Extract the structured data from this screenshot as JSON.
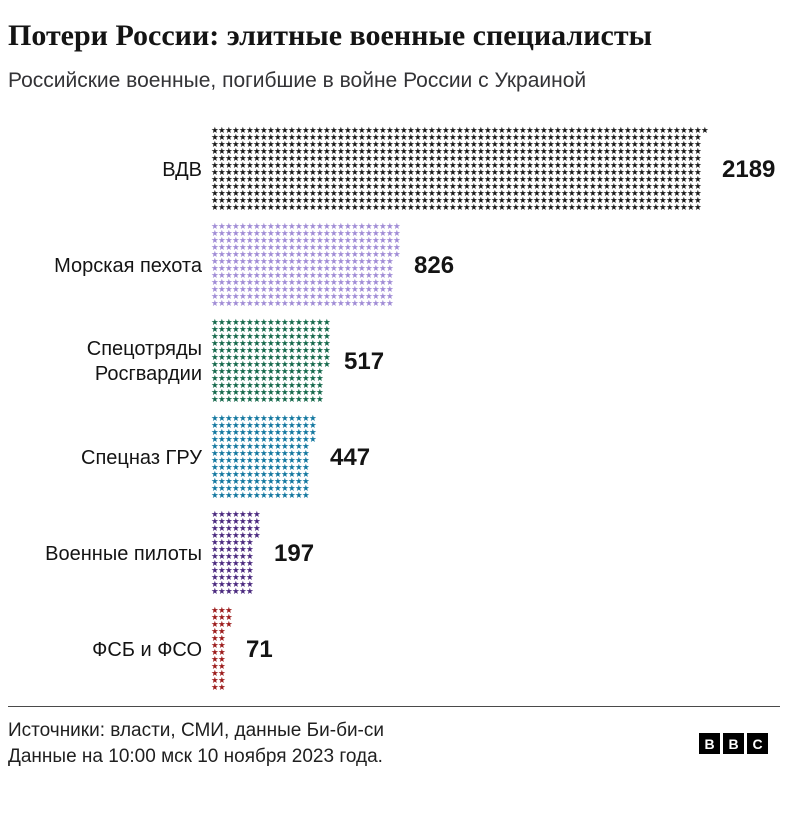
{
  "header": {
    "title": "Потери России: элитные военные специалисты",
    "subtitle": "Российские военные, погибшие в войне России с Украиной"
  },
  "chart_data": {
    "type": "bar",
    "variant": "pictogram",
    "unit_glyph": "★",
    "orientation": "horizontal",
    "categories": [
      "ВДВ",
      "Морская пехота",
      "Спецотряды Росгвардии",
      "Спецназ ГРУ",
      "Военные пилоты",
      "ФСБ и ФСО"
    ],
    "values": [
      2189,
      826,
      517,
      447,
      197,
      71
    ],
    "colors": [
      "#1a1a1a",
      "#a18dd6",
      "#16694c",
      "#1478a0",
      "#4b2a7f",
      "#9c1b1b"
    ],
    "value_labels": [
      "2189",
      "826",
      "517",
      "447",
      "197",
      "71"
    ],
    "title": "Потери России: элитные военные специалисты",
    "subtitle": "Российские военные, погибшие в войне России с Украиной",
    "xlabel": "",
    "ylabel": ""
  },
  "footer": {
    "source": "Источники: власти, СМИ, данные Би-би-си",
    "note": "Данные на 10:00 мск 10 ноября 2023 года.",
    "logo_letters": [
      "B",
      "B",
      "C"
    ]
  }
}
